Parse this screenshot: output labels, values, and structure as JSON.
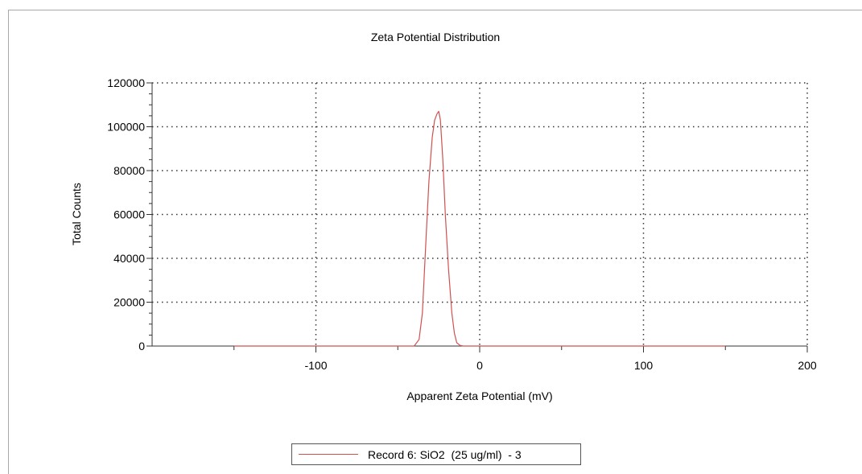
{
  "chart_data": {
    "type": "line",
    "title": "Zeta Potential Distribution",
    "xlabel": "Apparent Zeta Potential (mV)",
    "ylabel": "Total Counts",
    "xlim": [
      -200,
      200
    ],
    "ylim": [
      0,
      120000
    ],
    "x_ticks": [
      -100,
      0,
      100,
      200
    ],
    "y_ticks": [
      0,
      20000,
      40000,
      60000,
      80000,
      100000,
      120000
    ],
    "grid": true,
    "legend_position": "bottom-center",
    "series": [
      {
        "name": "Record 6: SiO2  (25 ug/ml)  - 3",
        "color": "#d05050",
        "x": [
          -150,
          -40,
          -37,
          -35,
          -33,
          -31,
          -29,
          -27.5,
          -26,
          -25,
          -24,
          -22.5,
          -21,
          -19,
          -17,
          -15.5,
          -14,
          -12,
          -10,
          150
        ],
        "y": [
          0,
          0,
          3000,
          15000,
          45000,
          75000,
          95000,
          103000,
          106000,
          107000,
          103000,
          85000,
          60000,
          35000,
          15000,
          6000,
          1500,
          300,
          0,
          0
        ]
      }
    ]
  }
}
